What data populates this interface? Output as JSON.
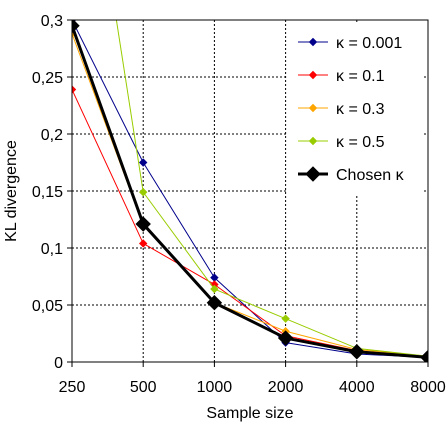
{
  "chart_data": {
    "type": "line",
    "xlabel": "Sample size",
    "ylabel": "KL divergence",
    "x": [
      "250",
      "500",
      "1000",
      "2000",
      "4000",
      "8000"
    ],
    "x_scale": "log2",
    "ylim": [
      0,
      0.3
    ],
    "yticks": [
      0,
      0.05,
      0.1,
      0.15,
      0.2,
      0.25,
      0.3
    ],
    "ytick_labels": [
      "0",
      "0,05",
      "0,1",
      "0,15",
      "0,2",
      "0,25",
      "0,3"
    ],
    "grid": true,
    "legend_position": "top-right",
    "series": [
      {
        "name": "κ = 0.001",
        "color": "#00008b",
        "marker": "diamond",
        "values": [
          0.3,
          0.175,
          0.074,
          0.017,
          0.007,
          0.004
        ]
      },
      {
        "name": "κ = 0.1",
        "color": "#ff0000",
        "marker": "diamond",
        "values": [
          0.239,
          0.104,
          0.068,
          0.023,
          0.01,
          0.004
        ]
      },
      {
        "name": "κ = 0.3",
        "color": "#ffa500",
        "marker": "diamond",
        "values": [
          0.288,
          0.12,
          0.052,
          0.027,
          0.011,
          0.005
        ]
      },
      {
        "name": "κ = 0.5",
        "color": "#99cc00",
        "marker": "diamond",
        "values": [
          0.55,
          0.149,
          0.064,
          0.038,
          0.012,
          0.005
        ]
      },
      {
        "name": "Chosen κ",
        "color": "#000000",
        "marker": "diamond-large",
        "values": [
          0.295,
          0.121,
          0.052,
          0.021,
          0.009,
          0.004
        ]
      }
    ]
  }
}
